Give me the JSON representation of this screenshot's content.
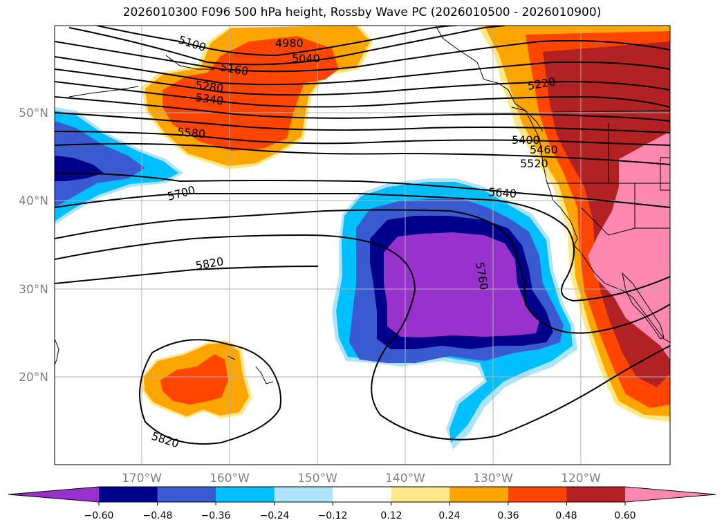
{
  "title": "2026010300 F096 500 hPa height, Rossby Wave PC (2026010500 - 2026010900)",
  "map": {
    "lat_ticks": [
      "50°N",
      "40°N",
      "30°N",
      "20°N"
    ],
    "lon_ticks": [
      "170°W",
      "160°W",
      "150°W",
      "140°W",
      "130°W",
      "120°W"
    ],
    "contour_labels": [
      "5100",
      "4980",
      "5040",
      "5160",
      "5280",
      "5340",
      "5580",
      "5700",
      "5820",
      "5820",
      "5640",
      "5760",
      "5220",
      "5400",
      "5460",
      "5520"
    ]
  },
  "colorbar": {
    "tick_labels": [
      "−0.60",
      "−0.48",
      "−0.36",
      "−0.24",
      "−0.12",
      "0.12",
      "0.24",
      "0.36",
      "0.48",
      "0.60"
    ],
    "colors": [
      "#9932cc",
      "#00008b",
      "#3a5bd0",
      "#00bfff",
      "#ade3fb",
      "#ffffff",
      "#ffe88a",
      "#ffa500",
      "#ff4500",
      "#b22222",
      "#ff88b0"
    ]
  }
}
